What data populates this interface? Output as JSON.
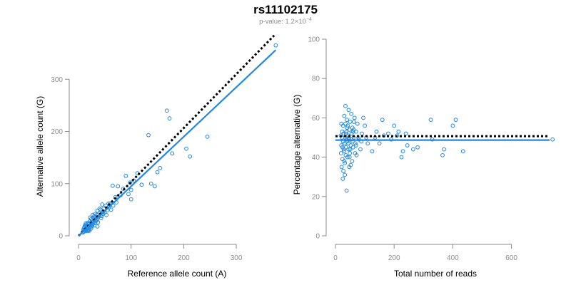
{
  "title": "rs11102175",
  "subtitle_prefix": "p-value: 1.2×10",
  "subtitle_exp": "−4",
  "colors": {
    "points": "#1e88e5",
    "fit": "#1e88e5",
    "expected": "#000000",
    "axis": "#8a8a8a"
  },
  "chart_data": [
    {
      "type": "scatter",
      "xlabel": "Reference allele count (A)",
      "ylabel": "Alternative allele count (G)",
      "xlim": [
        0,
        380
      ],
      "ylim": [
        0,
        370
      ],
      "xticks": [
        0,
        100,
        200,
        300
      ],
      "yticks": [
        0,
        100,
        200,
        300
      ],
      "expected_line": {
        "from": [
          0,
          0
        ],
        "to": [
          372,
          384
        ]
      },
      "fit_line": {
        "from": [
          0,
          0
        ],
        "to": [
          375,
          356
        ]
      },
      "points": [
        [
          375,
          365
        ],
        [
          168,
          240
        ],
        [
          133,
          193
        ],
        [
          173,
          225
        ],
        [
          245,
          190
        ],
        [
          205,
          167
        ],
        [
          212,
          152
        ],
        [
          178,
          158
        ],
        [
          150,
          122
        ],
        [
          138,
          100
        ],
        [
          145,
          95
        ],
        [
          112,
          120
        ],
        [
          105,
          106
        ],
        [
          98,
          102
        ],
        [
          90,
          115
        ],
        [
          85,
          90
        ],
        [
          80,
          78
        ],
        [
          75,
          95
        ],
        [
          65,
          96
        ],
        [
          70,
          74
        ],
        [
          60,
          62
        ],
        [
          58,
          55
        ],
        [
          55,
          49
        ],
        [
          52,
          58
        ],
        [
          50,
          45
        ],
        [
          48,
          52
        ],
        [
          46,
          42
        ],
        [
          45,
          60
        ],
        [
          44,
          38
        ],
        [
          42,
          50
        ],
        [
          40,
          44
        ],
        [
          38,
          36
        ],
        [
          36,
          48
        ],
        [
          35,
          40
        ],
        [
          34,
          32
        ],
        [
          33,
          28
        ],
        [
          32,
          36
        ],
        [
          31,
          25
        ],
        [
          30,
          30
        ],
        [
          30,
          20
        ],
        [
          29,
          34
        ],
        [
          28,
          27
        ],
        [
          27,
          22
        ],
        [
          26,
          30
        ],
        [
          25,
          18
        ],
        [
          25,
          26
        ],
        [
          24,
          14
        ],
        [
          23,
          21
        ],
        [
          22,
          28
        ],
        [
          22,
          17
        ],
        [
          21,
          24
        ],
        [
          20,
          19
        ],
        [
          20,
          12
        ],
        [
          19,
          22
        ],
        [
          18,
          16
        ],
        [
          18,
          25
        ],
        [
          17,
          13
        ],
        [
          16,
          19
        ],
        [
          15,
          10
        ],
        [
          15,
          22
        ],
        [
          14,
          15
        ],
        [
          13,
          9
        ],
        [
          13,
          18
        ],
        [
          12,
          12
        ],
        [
          11,
          16
        ],
        [
          10,
          8
        ],
        [
          10,
          14
        ],
        [
          9,
          11
        ],
        [
          8,
          6
        ],
        [
          12,
          20
        ],
        [
          14,
          24
        ],
        [
          16,
          12
        ],
        [
          18,
          9
        ],
        [
          21,
          10
        ],
        [
          24,
          32
        ],
        [
          26,
          20
        ],
        [
          28,
          35
        ],
        [
          32,
          42
        ],
        [
          35,
          30
        ],
        [
          37,
          26
        ],
        [
          40,
          52
        ],
        [
          43,
          34
        ],
        [
          47,
          46
        ],
        [
          53,
          40
        ],
        [
          57,
          62
        ],
        [
          62,
          50
        ],
        [
          66,
          58
        ],
        [
          72,
          64
        ],
        [
          95,
          80
        ],
        [
          100,
          88
        ],
        [
          120,
          98
        ],
        [
          155,
          130
        ],
        [
          100,
          70
        ],
        [
          30,
          38
        ],
        [
          27,
          40
        ],
        [
          36,
          18
        ],
        [
          22,
          35
        ]
      ]
    },
    {
      "type": "scatter",
      "xlabel": "Total number of reads",
      "ylabel": "Percentage alternative (G)",
      "xlim": [
        0,
        730
      ],
      "ylim": [
        0,
        100
      ],
      "xticks": [
        0,
        200,
        400,
        600
      ],
      "yticks": [
        0,
        20,
        40,
        60,
        80,
        100
      ],
      "expected_line": {
        "from": [
          0,
          50.7
        ],
        "to": [
          730,
          50.7
        ]
      },
      "fit_line": {
        "from": [
          0,
          48.7
        ],
        "to": [
          730,
          48.7
        ]
      },
      "points": [
        [
          740,
          49
        ],
        [
          325,
          59
        ],
        [
          410,
          59
        ],
        [
          400,
          56
        ],
        [
          370,
          44
        ],
        [
          365,
          41
        ],
        [
          435,
          43
        ],
        [
          330,
          49
        ],
        [
          280,
          45
        ],
        [
          265,
          44
        ],
        [
          245,
          46
        ],
        [
          230,
          43
        ],
        [
          225,
          40
        ],
        [
          215,
          53
        ],
        [
          210,
          51
        ],
        [
          200,
          56
        ],
        [
          190,
          49
        ],
        [
          165,
          51
        ],
        [
          160,
          59
        ],
        [
          150,
          47
        ],
        [
          140,
          53
        ],
        [
          125,
          43
        ],
        [
          110,
          47
        ],
        [
          100,
          56
        ],
        [
          95,
          60
        ],
        [
          90,
          52
        ],
        [
          85,
          44
        ],
        [
          80,
          49
        ],
        [
          75,
          57
        ],
        [
          72,
          41
        ],
        [
          70,
          53
        ],
        [
          68,
          47
        ],
        [
          65,
          60
        ],
        [
          62,
          50
        ],
        [
          60,
          45
        ],
        [
          58,
          55
        ],
        [
          57,
          38
        ],
        [
          55,
          52
        ],
        [
          54,
          62
        ],
        [
          52,
          46
        ],
        [
          50,
          58
        ],
        [
          49,
          42
        ],
        [
          48,
          54
        ],
        [
          47,
          35
        ],
        [
          46,
          49
        ],
        [
          45,
          64
        ],
        [
          44,
          44
        ],
        [
          43,
          51
        ],
        [
          42,
          56
        ],
        [
          41,
          40
        ],
        [
          40,
          48
        ],
        [
          39,
          59
        ],
        [
          38,
          23
        ],
        [
          37,
          53
        ],
        [
          36,
          45
        ],
        [
          35,
          41
        ],
        [
          34,
          66
        ],
        [
          33,
          50
        ],
        [
          32,
          37
        ],
        [
          31,
          47
        ],
        [
          30,
          61
        ],
        [
          29,
          43
        ],
        [
          28,
          52
        ],
        [
          27,
          33
        ],
        [
          26,
          48
        ],
        [
          26,
          56
        ],
        [
          25,
          29
        ],
        [
          24,
          45
        ],
        [
          24,
          39
        ],
        [
          23,
          53
        ],
        [
          22,
          50
        ],
        [
          21,
          35
        ],
        [
          20,
          46
        ],
        [
          20,
          57
        ],
        [
          19,
          42
        ],
        [
          18,
          51
        ],
        [
          55,
          49
        ],
        [
          60,
          53
        ],
        [
          63,
          58
        ],
        [
          67,
          42
        ],
        [
          52,
          36
        ],
        [
          48,
          40
        ],
        [
          44,
          47
        ],
        [
          40,
          55
        ],
        [
          36,
          52
        ],
        [
          32,
          31
        ],
        [
          28,
          44
        ],
        [
          30,
          38
        ],
        [
          34,
          57
        ],
        [
          38,
          49
        ],
        [
          45,
          50
        ],
        [
          50,
          44
        ],
        [
          58,
          48
        ],
        [
          62,
          54
        ],
        [
          70,
          46
        ],
        [
          78,
          50
        ],
        [
          88,
          48
        ],
        [
          105,
          50
        ],
        [
          135,
          50
        ],
        [
          180,
          52
        ],
        [
          240,
          52
        ]
      ]
    }
  ]
}
